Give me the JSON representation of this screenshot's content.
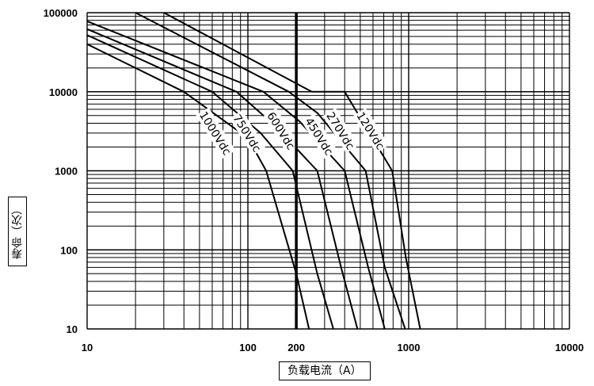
{
  "chart_data": {
    "type": "line",
    "xscale": "log",
    "yscale": "log",
    "xlim": [
      10,
      10000
    ],
    "ylim": [
      10,
      100000
    ],
    "xlabel": "负载电流（A）",
    "ylabel": "寿命（次）",
    "x_ticks": [
      "10",
      "100",
      "1000",
      "10000"
    ],
    "y_ticks": [
      "10",
      "100",
      "1000",
      "10000",
      "100000"
    ],
    "marker": {
      "x": 200,
      "label": "200"
    },
    "grid": true,
    "series": [
      {
        "name": "1000Vdc",
        "points": [
          [
            10,
            40000
          ],
          [
            40,
            10000
          ],
          [
            100,
            2600
          ],
          [
            130,
            1000
          ],
          [
            200,
            50
          ],
          [
            240,
            10
          ]
        ]
      },
      {
        "name": "750Vdc",
        "points": [
          [
            10,
            52000
          ],
          [
            60,
            10000
          ],
          [
            120,
            3000
          ],
          [
            190,
            1000
          ],
          [
            270,
            50
          ],
          [
            340,
            10
          ]
        ]
      },
      {
        "name": "600Vdc",
        "points": [
          [
            10,
            62000
          ],
          [
            85,
            10000
          ],
          [
            150,
            3600
          ],
          [
            270,
            1000
          ],
          [
            380,
            60
          ],
          [
            480,
            10
          ]
        ]
      },
      {
        "name": "450Vdc",
        "points": [
          [
            10,
            78000
          ],
          [
            125,
            10000
          ],
          [
            210,
            4200
          ],
          [
            400,
            1000
          ],
          [
            560,
            60
          ],
          [
            710,
            10
          ]
        ]
      },
      {
        "name": "270Vdc",
        "points": [
          [
            20,
            100000
          ],
          [
            180,
            10000
          ],
          [
            270,
            5400
          ],
          [
            540,
            1000
          ],
          [
            710,
            60
          ],
          [
            950,
            10
          ]
        ]
      },
      {
        "name": "120Vdc",
        "points": [
          [
            30,
            100000
          ],
          [
            250,
            10000
          ],
          [
            400,
            10000
          ],
          [
            790,
            1000
          ],
          [
            960,
            80
          ],
          [
            1180,
            10
          ]
        ]
      }
    ],
    "annotations": [
      "1000Vdc",
      "750Vdc",
      "600Vdc",
      "450Vdc",
      "270Vdc",
      "120Vdc"
    ]
  }
}
